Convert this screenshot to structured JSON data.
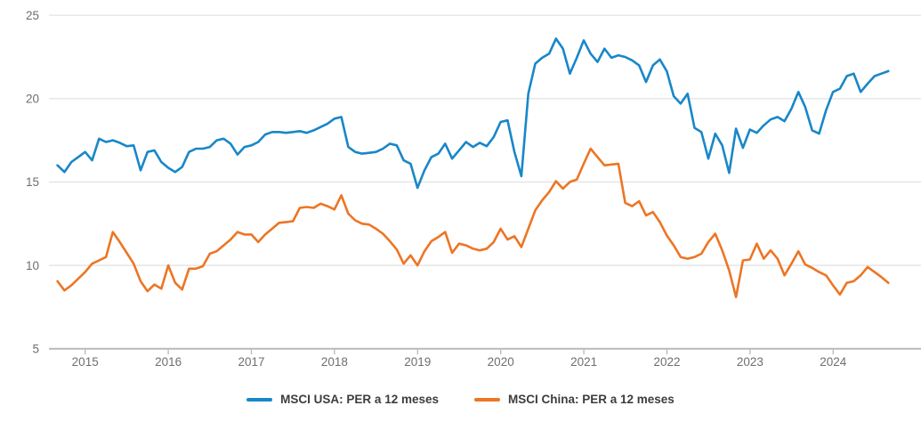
{
  "chart_data": {
    "type": "line",
    "title": "",
    "x_start": "2014-09",
    "frequency": "monthly",
    "x_axis": {
      "ticks": [
        "2015",
        "2016",
        "2017",
        "2018",
        "2019",
        "2020",
        "2021",
        "2022",
        "2023",
        "2024"
      ]
    },
    "y_axis": {
      "ticks": [
        25,
        20,
        15,
        10,
        5
      ],
      "min": 5,
      "max": 25
    },
    "grid": true,
    "legend_position": "bottom-center",
    "axis_text_color": "#6f6f6f",
    "series": [
      {
        "name": "MSCI USA: PER a 12 meses",
        "color": "#1887c8",
        "values": [
          16.0,
          15.6,
          16.2,
          16.5,
          16.8,
          16.3,
          17.6,
          17.4,
          17.5,
          17.35,
          17.15,
          17.2,
          15.7,
          16.8,
          16.9,
          16.2,
          15.85,
          15.6,
          15.9,
          16.8,
          17.0,
          17.0,
          17.1,
          17.5,
          17.6,
          17.3,
          16.65,
          17.1,
          17.2,
          17.4,
          17.85,
          18.0,
          18.0,
          17.95,
          18.0,
          18.05,
          17.95,
          18.1,
          18.3,
          18.5,
          18.8,
          18.9,
          17.1,
          16.8,
          16.7,
          16.75,
          16.8,
          17.0,
          17.3,
          17.2,
          16.3,
          16.1,
          14.65,
          15.7,
          16.5,
          16.7,
          17.3,
          16.4,
          16.9,
          17.4,
          17.1,
          17.35,
          17.15,
          17.7,
          18.6,
          18.7,
          16.8,
          15.35,
          20.3,
          22.1,
          22.45,
          22.7,
          23.6,
          23.0,
          21.5,
          22.45,
          23.5,
          22.7,
          22.2,
          23.0,
          22.45,
          22.6,
          22.5,
          22.3,
          22.0,
          21.0,
          22.0,
          22.35,
          21.65,
          20.15,
          19.7,
          20.3,
          18.25,
          18.0,
          16.4,
          17.9,
          17.2,
          15.55,
          18.2,
          17.05,
          18.15,
          17.95,
          18.4,
          18.75,
          18.9,
          18.65,
          19.4,
          20.4,
          19.5,
          18.1,
          17.9,
          19.3,
          20.4,
          20.6,
          21.35,
          21.5,
          20.4,
          20.9,
          21.35,
          21.5,
          21.65
        ]
      },
      {
        "name": "MSCI China: PER a 12 meses",
        "color": "#ed7524",
        "values": [
          9.05,
          8.5,
          8.8,
          9.2,
          9.6,
          10.1,
          10.3,
          10.5,
          12.0,
          11.4,
          10.75,
          10.1,
          9.05,
          8.45,
          8.85,
          8.6,
          10.0,
          8.95,
          8.55,
          9.8,
          9.8,
          9.95,
          10.7,
          10.85,
          11.2,
          11.55,
          12.0,
          11.85,
          11.85,
          11.4,
          11.85,
          12.2,
          12.55,
          12.6,
          12.65,
          13.45,
          13.5,
          13.45,
          13.7,
          13.55,
          13.35,
          14.2,
          13.1,
          12.7,
          12.5,
          12.45,
          12.2,
          11.9,
          11.45,
          10.95,
          10.1,
          10.6,
          10.0,
          10.85,
          11.45,
          11.7,
          12.0,
          10.75,
          11.3,
          11.2,
          11.0,
          10.9,
          11.0,
          11.4,
          12.2,
          11.55,
          11.75,
          11.1,
          12.2,
          13.3,
          13.9,
          14.4,
          15.05,
          14.6,
          15.0,
          15.15,
          16.1,
          17.0,
          16.5,
          16.0,
          16.05,
          16.1,
          13.75,
          13.55,
          13.85,
          13.0,
          13.2,
          12.6,
          11.8,
          11.2,
          10.5,
          10.4,
          10.5,
          10.7,
          11.4,
          11.9,
          10.9,
          9.7,
          8.1,
          10.3,
          10.35,
          11.3,
          10.4,
          10.9,
          10.4,
          9.4,
          10.1,
          10.85,
          10.05,
          9.85,
          9.6,
          9.4,
          8.8,
          8.25,
          8.95,
          9.05,
          9.4,
          9.9,
          9.6,
          9.3,
          8.95
        ]
      }
    ]
  }
}
